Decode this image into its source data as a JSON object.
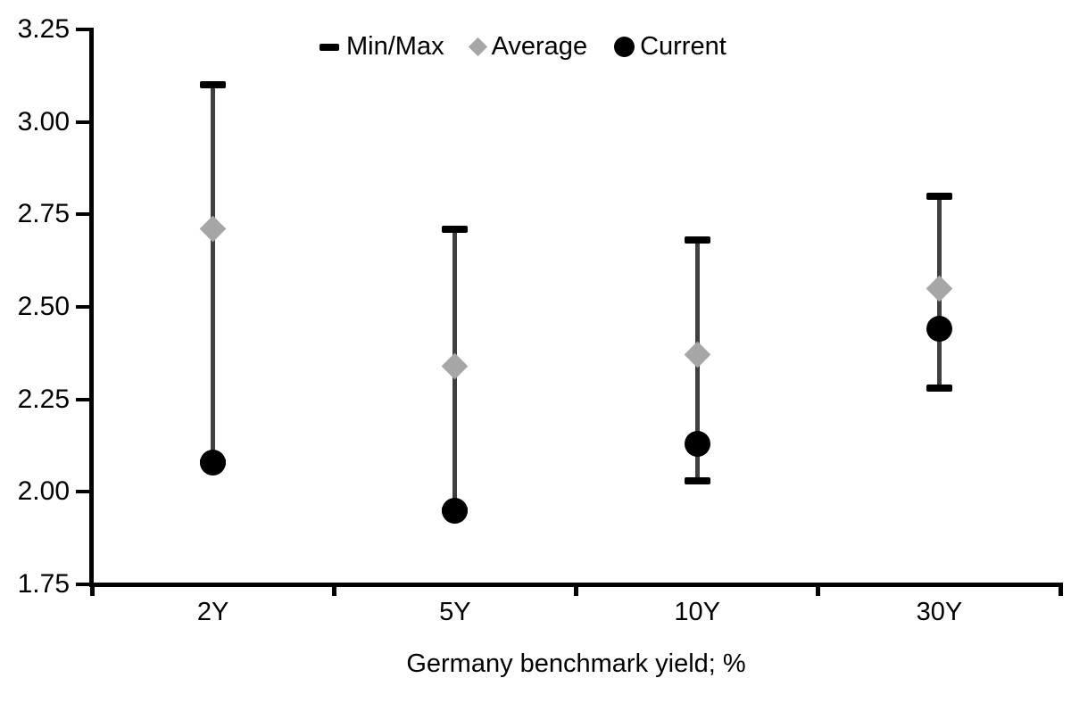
{
  "colors": {
    "marker_black": "#000000",
    "whisker_gray": "#3f3f3f",
    "average_gray": "#a6a6a6",
    "background": "#ffffff"
  },
  "chart_data": {
    "type": "scatter",
    "subtype": "min-max-range-with-average-and-current-markers",
    "title": "",
    "xlabel": "Germany benchmark yield; %",
    "ylabel": "",
    "categories": [
      "2Y",
      "5Y",
      "10Y",
      "30Y"
    ],
    "ylim": [
      1.75,
      3.25
    ],
    "ytick_step": 0.25,
    "yticks": [
      "1.75",
      "2.00",
      "2.25",
      "2.50",
      "2.75",
      "3.00",
      "3.25"
    ],
    "grid": false,
    "legend_position": "top-center",
    "legend": [
      {
        "label": "Min/Max",
        "marker": "dash-icon"
      },
      {
        "label": "Average",
        "marker": "diamond-icon"
      },
      {
        "label": "Current",
        "marker": "circle-icon"
      }
    ],
    "series": [
      {
        "name": "Min/Max",
        "type": "range",
        "min": [
          2.08,
          1.95,
          2.03,
          2.28
        ],
        "max": [
          3.1,
          2.71,
          2.68,
          2.8
        ]
      },
      {
        "name": "Average",
        "type": "diamond",
        "values": [
          2.71,
          2.34,
          2.37,
          2.55
        ]
      },
      {
        "name": "Current",
        "type": "circle",
        "values": [
          2.08,
          1.95,
          2.13,
          2.44
        ]
      }
    ]
  }
}
